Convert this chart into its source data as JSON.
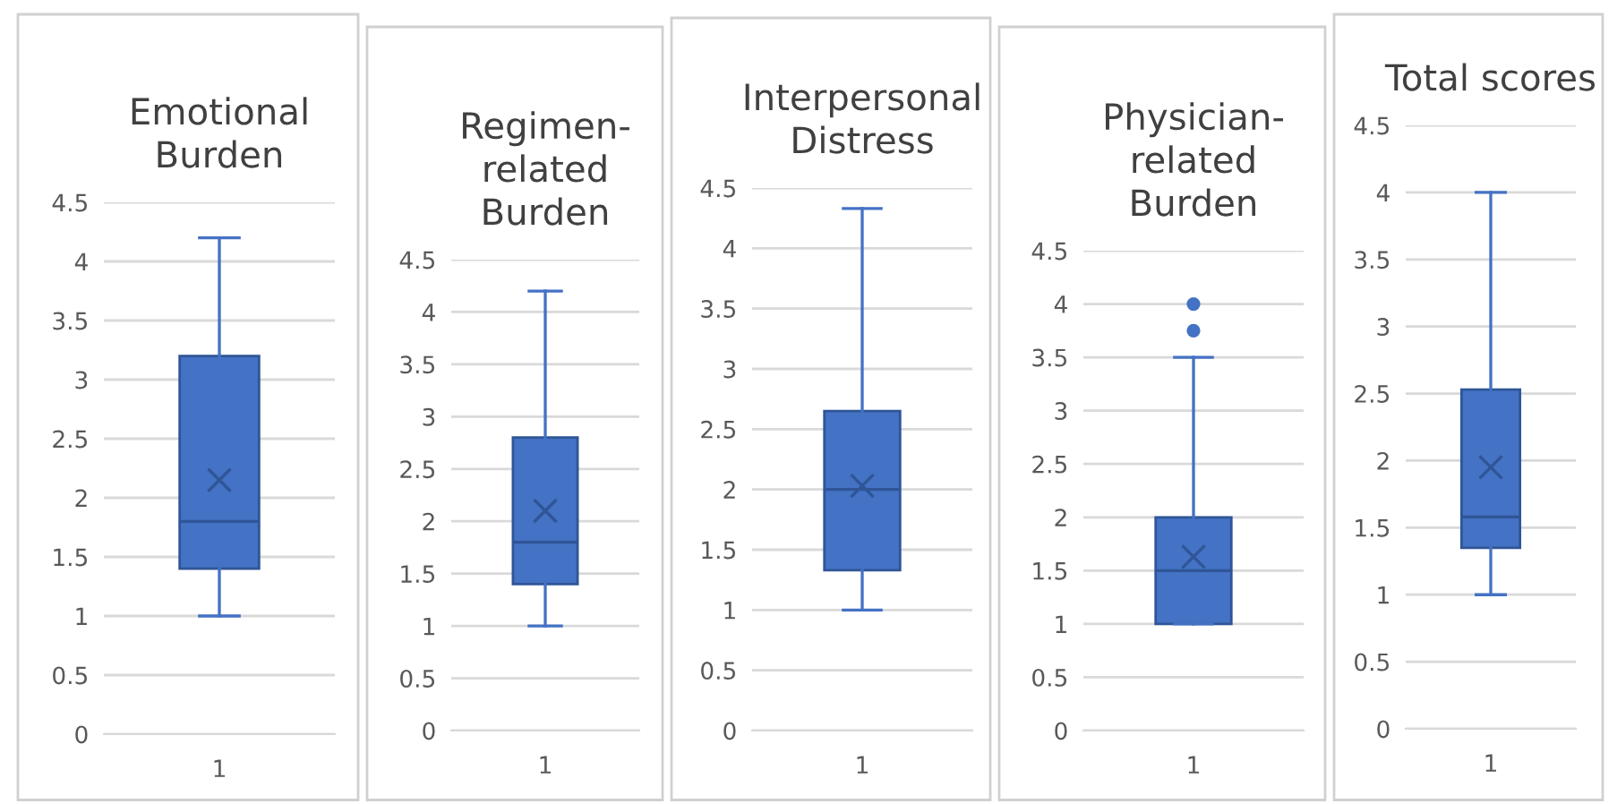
{
  "chart_data": [
    {
      "type": "box",
      "title": "Emotional\nBurden",
      "categories": [
        "1"
      ],
      "color": "#4472c4",
      "grid": "y",
      "ylim": [
        0,
        4.5
      ],
      "yticks": [
        0,
        0.5,
        1,
        1.5,
        2,
        2.5,
        3,
        3.5,
        4,
        4.5
      ],
      "boxes": [
        {
          "low": 1,
          "q1": 1.4,
          "median": 1.8,
          "q3": 3.2,
          "high": 4.2,
          "mean": 2.15
        }
      ]
    },
    {
      "type": "box",
      "title": "Regimen-\nrelated\nBurden",
      "categories": [
        "1"
      ],
      "color": "#4472c4",
      "grid": "y",
      "ylim": [
        0,
        4.5
      ],
      "yticks": [
        0,
        0.5,
        1,
        1.5,
        2,
        2.5,
        3,
        3.5,
        4,
        4.5
      ],
      "boxes": [
        {
          "low": 1,
          "q1": 1.4,
          "median": 1.8,
          "q3": 2.8,
          "high": 4.2,
          "mean": 2.1
        }
      ]
    },
    {
      "type": "box",
      "title": "Interpersonal\nDistress",
      "categories": [
        "1"
      ],
      "color": "#4472c4",
      "grid": "y",
      "ylim": [
        0,
        4.5
      ],
      "yticks": [
        0,
        0.5,
        1,
        1.5,
        2,
        2.5,
        3,
        3.5,
        4,
        4.5
      ],
      "boxes": [
        {
          "low": 1,
          "q1": 1.33,
          "median": 2.0,
          "q3": 2.65,
          "high": 4.33,
          "mean": 2.03
        }
      ]
    },
    {
      "type": "box",
      "title": "Physician-\nrelated\nBurden",
      "categories": [
        "1"
      ],
      "color": "#4472c4",
      "grid": "y",
      "ylim": [
        0,
        4.5
      ],
      "yticks": [
        0,
        0.5,
        1,
        1.5,
        2,
        2.5,
        3,
        3.5,
        4,
        4.5
      ],
      "boxes": [
        {
          "low": 1,
          "q1": 1,
          "median": 1.5,
          "q3": 2.0,
          "high": 3.5,
          "mean": 1.63,
          "outliers": [
            3.75,
            4
          ]
        }
      ]
    },
    {
      "type": "box",
      "title": "Total scores",
      "categories": [
        "1"
      ],
      "color": "#4472c4",
      "grid": "y",
      "ylim": [
        0,
        4.5
      ],
      "yticks": [
        0,
        0.5,
        1,
        1.5,
        2,
        2.5,
        3,
        3.5,
        4,
        4.5
      ],
      "boxes": [
        {
          "low": 1,
          "q1": 1.35,
          "median": 1.58,
          "q3": 2.53,
          "high": 4.0,
          "mean": 1.95
        }
      ]
    }
  ]
}
